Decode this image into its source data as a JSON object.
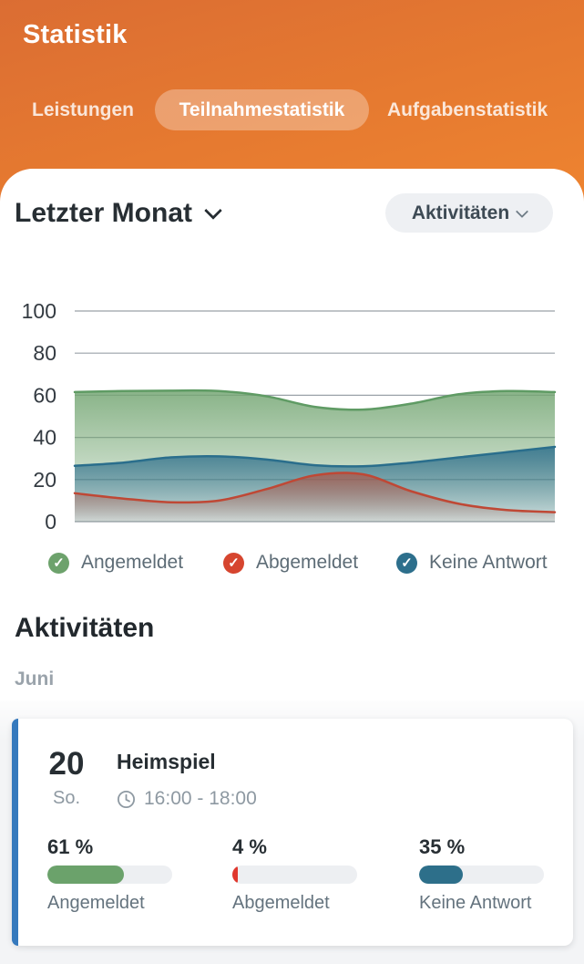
{
  "header": {
    "title": "Statistik",
    "tabs": [
      {
        "label": "Leistungen",
        "active": false
      },
      {
        "label": "Teilnahmestatistik",
        "active": true
      },
      {
        "label": "Aufgabenstatistik",
        "active": false
      }
    ]
  },
  "controls": {
    "period_label": "Letzter Monat",
    "view_label": "Aktivitäten"
  },
  "chart_data": {
    "type": "area",
    "title": "",
    "xlabel": "",
    "ylabel": "",
    "x": [
      0,
      10,
      20,
      30,
      40,
      50,
      60,
      70,
      80,
      90,
      100
    ],
    "x_axis_labels_visible": false,
    "ylim": [
      0,
      100
    ],
    "yticks": [
      0,
      20,
      40,
      60,
      80,
      100
    ],
    "grid": true,
    "legend_position": "bottom",
    "z_order": [
      0,
      2,
      1
    ],
    "series": [
      {
        "name": "Angemeldet",
        "color": "#5f9b64",
        "fill": "#74a673",
        "values": [
          61.5,
          62,
          62.2,
          62,
          59.5,
          54.5,
          53.2,
          56,
          60.5,
          62,
          61.5
        ]
      },
      {
        "name": "Abgemeldet",
        "color": "#bf4835",
        "fill": "#b05242",
        "values": [
          13.5,
          11,
          9.2,
          10,
          15.5,
          22,
          22.5,
          14.5,
          8.5,
          5.5,
          4.5
        ]
      },
      {
        "name": "Keine Antwort",
        "color": "#2a6e8c",
        "fill": "#2e6f8c",
        "values": [
          26.5,
          28,
          30.5,
          31,
          29.5,
          26.8,
          26.3,
          28,
          30.5,
          33,
          35.5
        ]
      }
    ]
  },
  "legend": [
    {
      "label": "Angemeldet",
      "color": "#6da26c"
    },
    {
      "label": "Abgemeldet",
      "color": "#d6452f"
    },
    {
      "label": "Keine Antwort",
      "color": "#2d6f8c"
    }
  ],
  "activities": {
    "heading": "Aktivitäten",
    "month": "Juni",
    "items": [
      {
        "day": "20",
        "weekday": "So.",
        "title": "Heimspiel",
        "time": "16:00 - 18:00",
        "accent_color": "#3579bd",
        "stats": [
          {
            "percent_label": "61 %",
            "value": 61,
            "label": "Angemeldet",
            "color": "#6ba26b"
          },
          {
            "percent_label": "4 %",
            "value": 4,
            "label": "Abgemeldet",
            "color": "#e0382e"
          },
          {
            "percent_label": "35 %",
            "value": 35,
            "label": "Keine Antwort",
            "color": "#2d6f8a"
          }
        ]
      }
    ]
  },
  "icons": {
    "check": "✓"
  },
  "colors": {
    "header_gradient_top": "#db6d33",
    "header_gradient_bottom": "#ee8430",
    "track_gray": "#edeff2",
    "gridline": "#9aa1a8"
  }
}
